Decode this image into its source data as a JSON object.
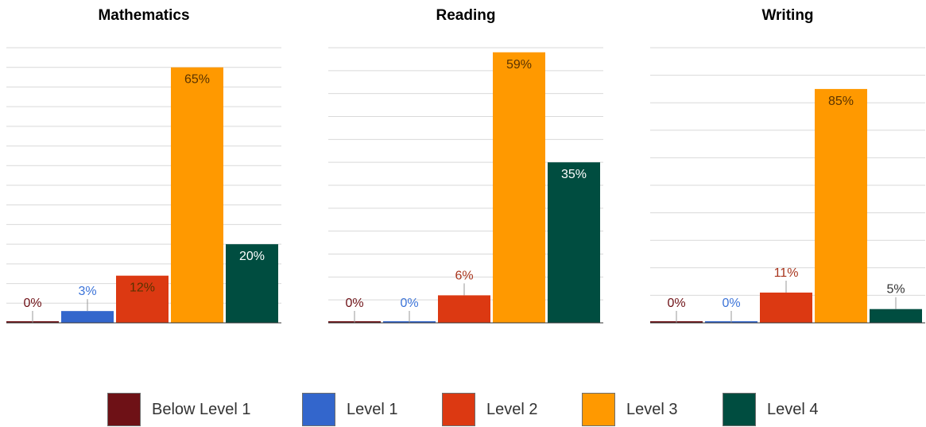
{
  "chart_data": [
    {
      "type": "bar",
      "title": "Mathematics",
      "categories": [
        "Below Level 1",
        "Level 1",
        "Level 2",
        "Level 3",
        "Level 4"
      ],
      "values": [
        0,
        3,
        12,
        65,
        20
      ],
      "value_labels": [
        "0%",
        "3%",
        "12%",
        "65%",
        "20%"
      ],
      "ylim": [
        0,
        70
      ],
      "grid": true
    },
    {
      "type": "bar",
      "title": "Reading",
      "categories": [
        "Below Level 1",
        "Level 1",
        "Level 2",
        "Level 3",
        "Level 4"
      ],
      "values": [
        0,
        0,
        6,
        59,
        35
      ],
      "value_labels": [
        "0%",
        "0%",
        "6%",
        "59%",
        "35%"
      ],
      "ylim": [
        0,
        60
      ],
      "grid": true
    },
    {
      "type": "bar",
      "title": "Writing",
      "categories": [
        "Below Level 1",
        "Level 1",
        "Level 2",
        "Level 3",
        "Level 4"
      ],
      "values": [
        0,
        0,
        11,
        85,
        5
      ],
      "value_labels": [
        "0%",
        "0%",
        "11%",
        "85%",
        "5%"
      ],
      "ylim": [
        0,
        100
      ],
      "grid": true
    }
  ],
  "legend": {
    "placement": "bottom",
    "items": [
      {
        "label": "Below Level 1",
        "color": "#6e1116"
      },
      {
        "label": "Level 1",
        "color": "#3366cc"
      },
      {
        "label": "Level 2",
        "color": "#dc3912"
      },
      {
        "label": "Level 3",
        "color": "#ff9900"
      },
      {
        "label": "Level 4",
        "color": "#004d40"
      }
    ]
  },
  "label_colors": [
    "#6e1116",
    "#3b73d8",
    "#a8341c",
    "#5a3300",
    "#ffffff"
  ]
}
